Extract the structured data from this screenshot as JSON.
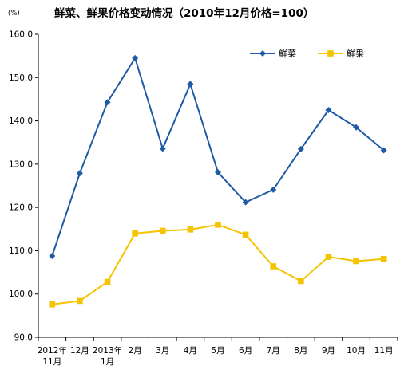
{
  "chart_data": {
    "type": "line",
    "title": "鲜菜、鲜果价格变动情况（2010年12月价格=100）",
    "unit_label": "(%)",
    "xlabel": "",
    "ylabel": "",
    "categories": [
      "2012年\n11月",
      "12月",
      "2013年\n1月",
      "2月",
      "3月",
      "4月",
      "5月",
      "6月",
      "7月",
      "8月",
      "9月",
      "10月",
      "11月"
    ],
    "series": [
      {
        "name": "鲜菜",
        "color": "#1f5aa6",
        "marker": "diamond",
        "values": [
          108.8,
          127.9,
          144.3,
          154.5,
          133.6,
          148.5,
          128.1,
          121.2,
          124.1,
          133.5,
          142.5,
          138.5,
          133.2
        ]
      },
      {
        "name": "鲜果",
        "color": "#f5c400",
        "marker": "square",
        "values": [
          97.6,
          98.4,
          102.8,
          114.0,
          114.6,
          114.9,
          116.0,
          113.7,
          106.4,
          103.0,
          108.6,
          107.6,
          108.1
        ]
      }
    ],
    "yticks": [
      "90.0",
      "100.0",
      "110.0",
      "120.0",
      "130.0",
      "140.0",
      "150.0",
      "160.0"
    ],
    "ylim": [
      90,
      160
    ],
    "grid": false,
    "legend_position": "top-right"
  }
}
